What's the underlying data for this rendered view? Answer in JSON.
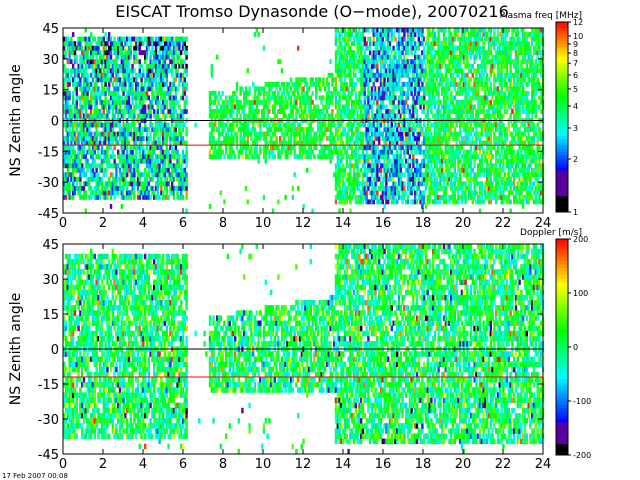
{
  "title": "EISCAT Tromso Dynasonde (O−mode),  20070216",
  "footer": "17 Feb 2007 00:08",
  "colors": {
    "zero_line": "#000000",
    "ref_line": "#ff0000"
  },
  "chart_data": [
    {
      "type": "heatmap",
      "name": "Plasma frequency",
      "xlabel": "",
      "ylabel": "NS Zenith angle",
      "xlim": [
        0,
        24
      ],
      "ylim": [
        -45,
        45
      ],
      "x_ticks": [
        0,
        2,
        4,
        6,
        8,
        10,
        12,
        14,
        16,
        18,
        20,
        22,
        24
      ],
      "y_ticks": [
        45,
        30,
        15,
        0,
        -15,
        -30,
        -45
      ],
      "reference_lines": [
        0,
        -12
      ],
      "colorbar": {
        "title": "Plasma freq [MHz]",
        "scale": "log",
        "range": [
          1,
          12
        ],
        "ticks": [
          12,
          10,
          9,
          8,
          7,
          6,
          5,
          4,
          3,
          2,
          1
        ]
      }
    },
    {
      "type": "heatmap",
      "name": "Doppler",
      "xlabel": "",
      "ylabel": "NS Zenith angle",
      "xlim": [
        0,
        24
      ],
      "ylim": [
        -45,
        45
      ],
      "x_ticks": [
        0,
        2,
        4,
        6,
        8,
        10,
        12,
        14,
        16,
        18,
        20,
        22,
        24
      ],
      "y_ticks": [
        45,
        30,
        15,
        0,
        -15,
        -30,
        -45
      ],
      "reference_lines": [
        0,
        -12
      ],
      "colorbar": {
        "title": "Doppler [m/s]",
        "scale": "linear",
        "range": [
          -200,
          200
        ],
        "ticks": [
          200,
          100,
          0,
          -100,
          -200
        ]
      }
    }
  ]
}
